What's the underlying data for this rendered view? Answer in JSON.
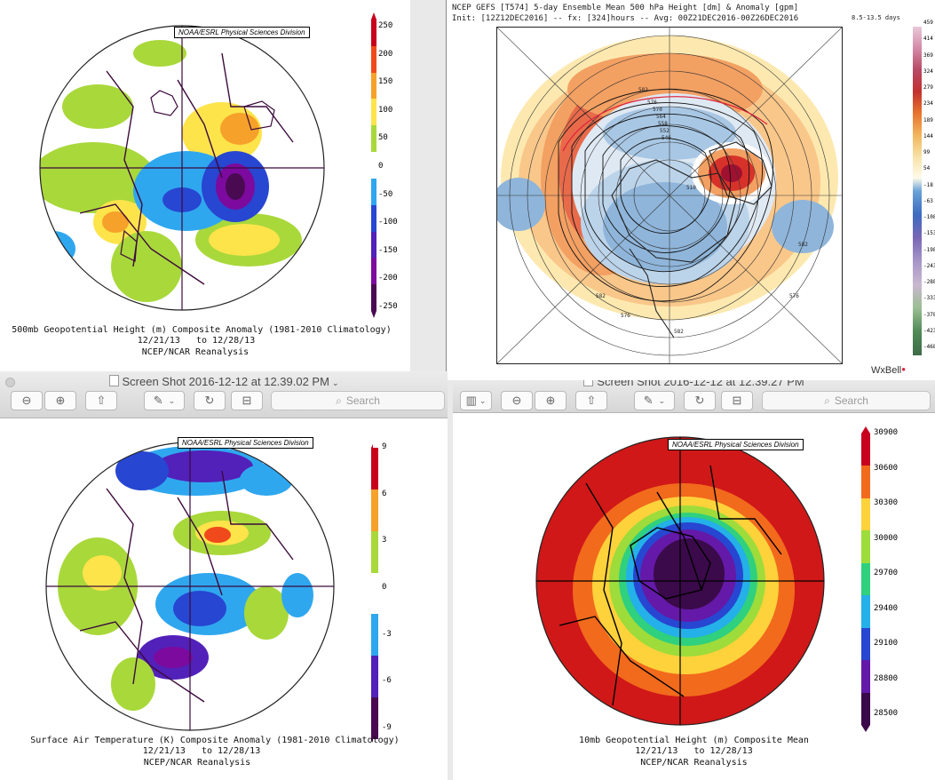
{
  "panel_tl": {
    "credit": "NOAA/ESRL Physical Sciences Division",
    "cap1": "500mb Geopotential Height (m) Composite Anomaly (1981-2010 Climatology)",
    "cap2": "12/21/13   to 12/28/13",
    "cap3": "NCEP/NCAR Reanalysis",
    "cbar_labels": [
      "250",
      "200",
      "150",
      "100",
      "50",
      "0",
      "-50",
      "-100",
      "-150",
      "-200",
      "-250"
    ],
    "cbar_colors": [
      "#c8001e",
      "#f04a1c",
      "#f6a12a",
      "#fde44b",
      "#a9d83b",
      "#ffffff",
      "#2fa7ef",
      "#2746d1",
      "#5221b9",
      "#7c0a9e",
      "#4a0a52"
    ]
  },
  "panel_tr": {
    "header1": "NCEP GEFS [T574] 5-day Ensemble Mean 500 hPa Height [dm] & Anomaly [gpm]",
    "header2": "Init: [12Z12DEC2016] -- fx: [324]hours -- Avg: 00Z21DEC2016-00Z26DEC2016",
    "range": "8.5-13.5 days",
    "brand": "WxBell",
    "contour_labels": [
      "582",
      "576",
      "570",
      "564",
      "558",
      "552",
      "546",
      "510",
      "582",
      "576",
      "582",
      "576",
      "582"
    ],
    "scale": [
      "459",
      "414",
      "369",
      "324",
      "279",
      "234",
      "189",
      "144",
      "99",
      "54",
      "-18",
      "-63",
      "-108",
      "-153",
      "-198",
      "-243",
      "-288",
      "-333",
      "-378",
      "-423",
      "-468"
    ]
  },
  "window_left": {
    "title": "Screen Shot 2016-12-12 at 12.39.02 PM",
    "search": "Search"
  },
  "window_right": {
    "title": "Screen Shot 2016-12-12 at 12.39.27 PM",
    "search": "Search"
  },
  "panel_bl": {
    "credit": "NOAA/ESRL Physical Sciences Division",
    "cap1": "Surface Air Temperature (K) Composite Anomaly (1981-2010 Climatology)",
    "cap2": "12/21/13   to 12/28/13",
    "cap3": "NCEP/NCAR Reanalysis",
    "cbar_labels": [
      "9",
      "6",
      "3",
      "0",
      "-3",
      "-6",
      "-9"
    ],
    "cbar_colors": [
      "#c8001e",
      "#f6a12a",
      "#a9d83b",
      "#ffffff",
      "#2fa7ef",
      "#5221b9",
      "#4a0a52"
    ]
  },
  "panel_br": {
    "credit": "NOAA/ESRL Physical Sciences Division",
    "cap1": "10mb Geopotential Height (m) Composite Mean",
    "cap2": "12/21/13   to 12/28/13",
    "cap3": "NCEP/NCAR Reanalysis",
    "cbar_labels": [
      "30900",
      "30600",
      "30300",
      "30000",
      "29700",
      "29400",
      "29100",
      "28800",
      "28500"
    ],
    "cbar_colors": [
      "#c8001e",
      "#f26a1c",
      "#fdd23b",
      "#9ddc3a",
      "#2fd07e",
      "#24b0e8",
      "#2746d1",
      "#6419a8",
      "#3b0a4a"
    ]
  }
}
